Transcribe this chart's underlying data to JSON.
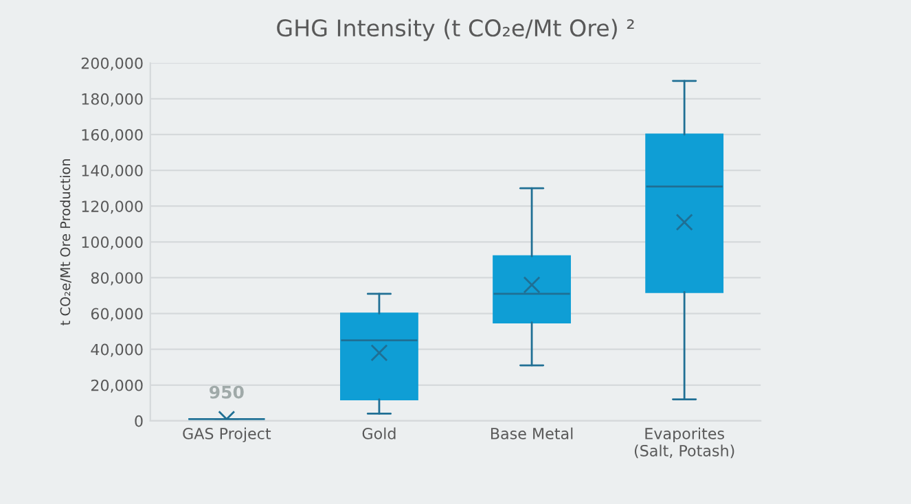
{
  "chart_data": {
    "type": "box",
    "title": "GHG Intensity (t CO₂e/Mt Ore) ²",
    "ylabel": "t CO₂e/Mt Ore Production",
    "categories": [
      "GAS Project",
      "Gold",
      "Base Metal",
      "Evaporites\n(Salt, Potash)"
    ],
    "series": [
      {
        "color": "#0f9ed5",
        "boxes": [
          {
            "low": 950,
            "q1": 950,
            "median": 950,
            "q3": 950,
            "high": 950,
            "mean": 950
          },
          {
            "low": 4000,
            "q1": 12000,
            "median": 45000,
            "q3": 60000,
            "high": 71000,
            "mean": 38000
          },
          {
            "low": 31000,
            "q1": 55000,
            "median": 71000,
            "q3": 92000,
            "high": 130000,
            "mean": 76000
          },
          {
            "low": 12000,
            "q1": 72000,
            "median": 131000,
            "q3": 160000,
            "high": 190000,
            "mean": 111000
          }
        ]
      }
    ],
    "annotations": [
      {
        "text": "950",
        "x": "GAS Project",
        "y": 950
      }
    ],
    "ylim": [
      0,
      200000
    ],
    "yticks": [
      {
        "value": 0,
        "label": "0"
      },
      {
        "value": 20000,
        "label": "20,000"
      },
      {
        "value": 40000,
        "label": "40,000"
      },
      {
        "value": 60000,
        "label": "60,000"
      },
      {
        "value": 80000,
        "label": "80,000"
      },
      {
        "value": 100000,
        "label": "100,000"
      },
      {
        "value": 120000,
        "label": "120,000"
      },
      {
        "value": 140000,
        "label": "140,000"
      },
      {
        "value": 160000,
        "label": "160,000"
      },
      {
        "value": 180000,
        "label": "180,000"
      },
      {
        "value": 200000,
        "label": "200,000"
      }
    ],
    "grid": "y",
    "marker": "cross"
  }
}
